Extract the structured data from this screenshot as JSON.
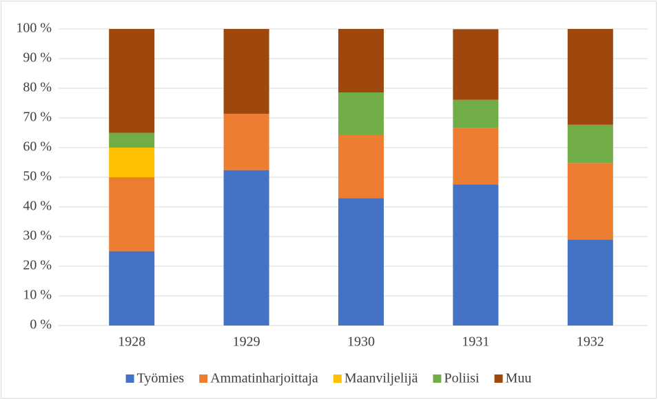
{
  "chart_data": {
    "type": "stacked_bar",
    "categories": [
      "1928",
      "1929",
      "1930",
      "1931",
      "1932"
    ],
    "series": [
      {
        "name": "Työmies",
        "color": "#4472c4",
        "values": [
          25,
          52.4,
          42.9,
          47.6,
          29.0
        ]
      },
      {
        "name": "Ammatinharjoittaja",
        "color": "#ed7d31",
        "values": [
          25,
          19.0,
          21.4,
          19.0,
          25.8
        ]
      },
      {
        "name": "Maanviljelijä",
        "color": "#ffc000",
        "values": [
          10,
          0,
          0,
          0,
          0
        ]
      },
      {
        "name": "Poliisi",
        "color": "#70ad47",
        "values": [
          5,
          0,
          14.3,
          9.5,
          12.9
        ]
      },
      {
        "name": "Muu",
        "color": "#9e480e",
        "values": [
          35,
          28.6,
          21.4,
          23.8,
          32.3
        ]
      }
    ],
    "ylim": [
      0,
      100
    ],
    "yticks": [
      {
        "value": 0,
        "label": "0 %"
      },
      {
        "value": 10,
        "label": "10 %"
      },
      {
        "value": 20,
        "label": "20 %"
      },
      {
        "value": 30,
        "label": "30 %"
      },
      {
        "value": 40,
        "label": "40 %"
      },
      {
        "value": 50,
        "label": "50 %"
      },
      {
        "value": 60,
        "label": "60 %"
      },
      {
        "value": 70,
        "label": "70 %"
      },
      {
        "value": 80,
        "label": "80 %"
      },
      {
        "value": 90,
        "label": "90 %"
      },
      {
        "value": 100,
        "label": "100 %"
      }
    ],
    "grid": true,
    "legend": "bottom"
  }
}
